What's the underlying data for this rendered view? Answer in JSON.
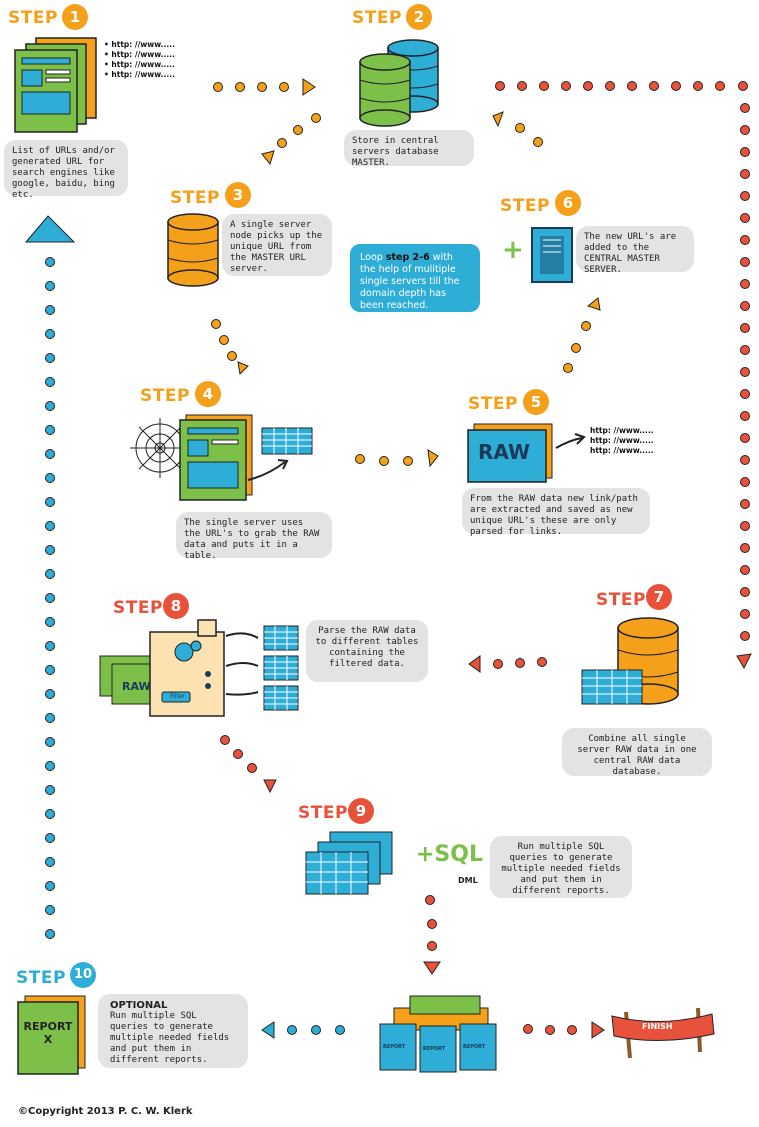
{
  "steps": [
    {
      "label": "STEP",
      "num": "1"
    },
    {
      "label": "STEP",
      "num": "2"
    },
    {
      "label": "STEP",
      "num": "3"
    },
    {
      "label": "STEP",
      "num": "4"
    },
    {
      "label": "STEP",
      "num": "5"
    },
    {
      "label": "STEP",
      "num": "6"
    },
    {
      "label": "STEP",
      "num": "7"
    },
    {
      "label": "STEP",
      "num": "8"
    },
    {
      "label": "STEP",
      "num": "9"
    },
    {
      "label": "STEP",
      "num": "10"
    }
  ],
  "notes": {
    "s1": "List of URLs and/or generated URL for search engines like google, baidu, bing  etc.",
    "s2": "Store in central servers database MASTER.",
    "s3": "A single server node picks up the unique URL from the MASTER URL server.",
    "s4": "The single server uses the URL's to grab the RAW data and puts it in a table.",
    "s5": "From the RAW data new link/path are extracted and saved as new unique URL's these are only parsed for links.",
    "s6": "The new URL's are added to the CENTRAL MASTER SERVER.",
    "s7": "Combine all single server RAW data in one central RAW data database.",
    "s8": "Parse the RAW data to different tables containing the filtered data.",
    "s9": "Run multiple SQL queries to generate multiple needed fields and put them in different reports.",
    "s10_title": "OPTIONAL",
    "s10": "Run multiple SQL queries to generate multiple needed fields and put them in different reports."
  },
  "loop": {
    "pre": "Loop ",
    "bold": "step 2-6",
    "post": " with the help of mulitiple single servers till the domain depth has been reached."
  },
  "url_lines": [
    "http: //www.....",
    "http: //www.....",
    "http: //www.....",
    "http: //www....."
  ],
  "url_lines_5": [
    "http: //www.....",
    "http: //www.....",
    "http: //www....."
  ],
  "raw_label": "RAW",
  "raw_label_small": "RAW",
  "filter_label": "Filter",
  "sql_label": "+SQL",
  "dml_label": "DML",
  "report_label": "REPORT",
  "report_x": "REPORT X",
  "finish_label": "FINISH",
  "copyright": "©Copyright 2013 P. C. W. Klerk",
  "colors": {
    "orange": "#f5a01a",
    "red": "#e8513a",
    "teal": "#2eaed6",
    "green": "#7cc04a",
    "navy": "#1a3a5c"
  }
}
